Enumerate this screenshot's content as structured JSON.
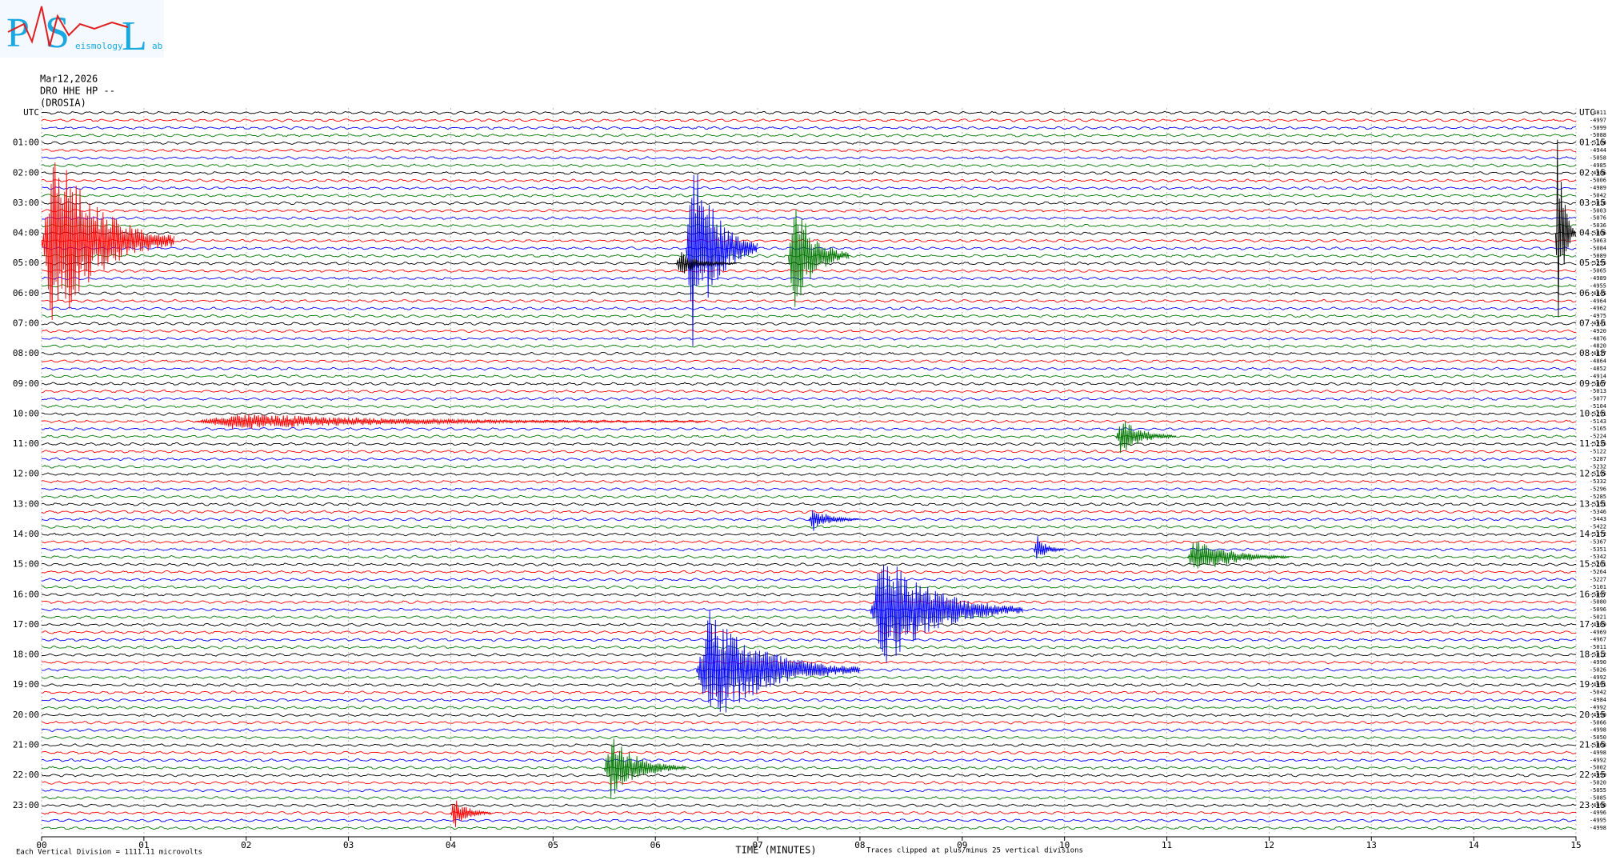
{
  "chart_data": {
    "type": "helicorder",
    "logo": {
      "letters": [
        "P",
        "S",
        "L"
      ],
      "small": [
        "eismology",
        "ab"
      ]
    },
    "header": [
      "Mar12,2026",
      "DRO HHE HP --",
      "(DROSIA)"
    ],
    "left_labels": [
      "UTC",
      "01:00",
      "02:00",
      "03:00",
      "04:00",
      "05:00",
      "06:00",
      "07:00",
      "08:00",
      "09:00",
      "10:00",
      "11:00",
      "12:00",
      "13:00",
      "14:00",
      "15:00",
      "16:00",
      "17:00",
      "18:00",
      "19:00",
      "20:00",
      "21:00",
      "22:00",
      "23:00"
    ],
    "right_labels": [
      "UTC",
      "01:15",
      "02:15",
      "03:15",
      "04:15",
      "05:15",
      "06:15",
      "07:15",
      "08:15",
      "09:15",
      "10:15",
      "11:15",
      "12:15",
      "13:15",
      "14:15",
      "15:15",
      "16:15",
      "17:15",
      "18:15",
      "19:15",
      "20:15",
      "21:15",
      "22:15",
      "23:15"
    ],
    "offsets": [
      -4811,
      -4997,
      -5099,
      -5088,
      -5104,
      -4944,
      -5058,
      -4985,
      -4986,
      -5006,
      -4989,
      -5042,
      -5016,
      -5003,
      -5076,
      -5036,
      -5006,
      -5063,
      -5084,
      -5089,
      -5255,
      -5065,
      -4989,
      -4955,
      -4845,
      -4964,
      -4962,
      -4975,
      -4941,
      -4920,
      -4876,
      -4820,
      -4837,
      -4864,
      -4852,
      -4914,
      -5067,
      -5013,
      -5077,
      -5104,
      -5291,
      -5143,
      -5165,
      -5224,
      -5235,
      -5122,
      -5287,
      -5232,
      -5195,
      -5332,
      -5296,
      -5285,
      -5351,
      -5346,
      -5443,
      -5422,
      -5372,
      -5367,
      -5351,
      -5342,
      -5201,
      -5264,
      -5227,
      -5101,
      -5097,
      -5080,
      -5096,
      -5021,
      -4989,
      -4969,
      -4967,
      -5011,
      -5012,
      -4990,
      -5026,
      -4992,
      -4991,
      -5042,
      -4984,
      -4992,
      -4990,
      -5066,
      -4998,
      -5050,
      -5068,
      -4998,
      -4992,
      -5002,
      -4999,
      -5020,
      -5055,
      -5085,
      -4990,
      -4996,
      -4995,
      -4998
    ],
    "trace_colors": [
      "#000000",
      "#ff0000",
      "#0000ff",
      "#007700"
    ],
    "xlabel": "TIME (MINUTES)",
    "scale_note": "Each Vertical Division = 1111.11 microvolts",
    "clip_note": "Traces clipped at plus/minus 25 vertical divisions",
    "xlim": [
      0,
      15
    ],
    "xticks": [
      {
        "value": 0,
        "label": "00"
      },
      {
        "value": 1,
        "label": "01"
      },
      {
        "value": 2,
        "label": "02"
      },
      {
        "value": 3,
        "label": "03"
      },
      {
        "value": 4,
        "label": "04"
      },
      {
        "value": 5,
        "label": "05"
      },
      {
        "value": 6,
        "label": "06"
      },
      {
        "value": 7,
        "label": "07"
      },
      {
        "value": 8,
        "label": "08"
      },
      {
        "value": 9,
        "label": "09"
      },
      {
        "value": 10,
        "label": "10"
      },
      {
        "value": 11,
        "label": "11"
      },
      {
        "value": 12,
        "label": "12"
      },
      {
        "value": 13,
        "label": "13"
      },
      {
        "value": 14,
        "label": "14"
      },
      15
    ],
    "grid": true,
    "events": [
      {
        "trace": 17,
        "minute": 0,
        "duration": 1.3,
        "amplitude": 25
      },
      {
        "trace": 41,
        "minute": 1.5,
        "duration": 5,
        "amplitude": 2
      },
      {
        "trace": 18,
        "minute": 6.3,
        "duration": 0.7,
        "amplitude": 25
      },
      {
        "trace": 19,
        "minute": 7.3,
        "duration": 0.6,
        "amplitude": 15
      },
      {
        "trace": 20,
        "minute": 6.2,
        "duration": 0.6,
        "amplitude": 3
      },
      {
        "trace": 16,
        "minute": 14.8,
        "duration": 0.2,
        "amplitude": 25
      },
      {
        "trace": 66,
        "minute": 8.1,
        "duration": 1.5,
        "amplitude": 15
      },
      {
        "trace": 74,
        "minute": 6.4,
        "duration": 1.6,
        "amplitude": 15
      },
      {
        "trace": 87,
        "minute": 5.5,
        "duration": 0.8,
        "amplitude": 8
      },
      {
        "trace": 93,
        "minute": 4.0,
        "duration": 0.4,
        "amplitude": 4
      },
      {
        "trace": 59,
        "minute": 11.2,
        "duration": 1.0,
        "amplitude": 5
      },
      {
        "trace": 58,
        "minute": 9.7,
        "duration": 0.3,
        "amplitude": 4
      },
      {
        "trace": 43,
        "minute": 10.5,
        "duration": 0.6,
        "amplitude": 5
      },
      {
        "trace": 54,
        "minute": 7.5,
        "duration": 0.5,
        "amplitude": 3
      }
    ]
  }
}
